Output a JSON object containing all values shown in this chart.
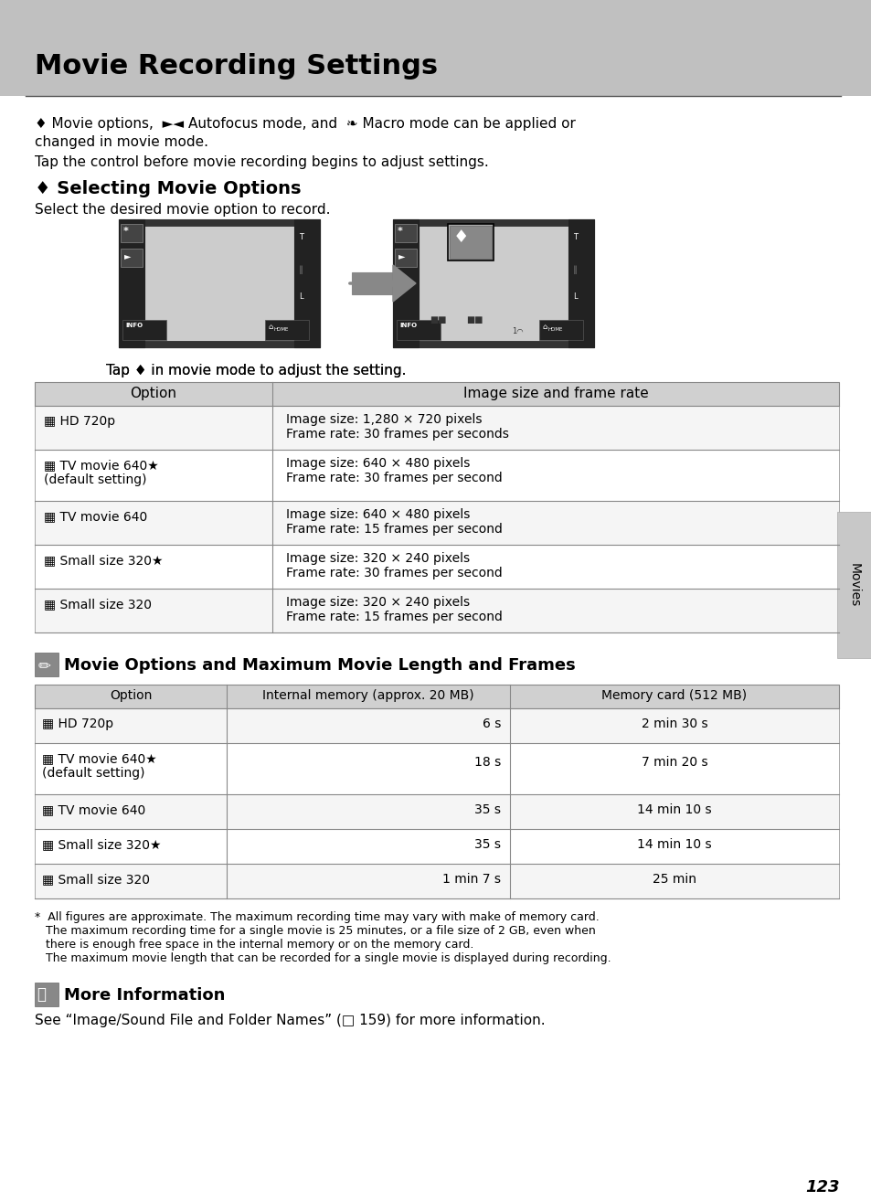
{
  "page_bg": "#ffffff",
  "header_bg": "#c0c0c0",
  "header_text": "Movie Recording Settings",
  "header_text_color": "#000000",
  "body_text_color": "#000000",
  "table1_header_bg": "#d0d0d0",
  "table2_header_bg": "#d0d0d0",
  "table_row_alt": "#f0f0f0",
  "table_border": "#888888",
  "intro_line1": "♦ Movie options, ►◄ Autofocus mode, and ❧ Macro mode can be applied or",
  "intro_line2": "changed in movie mode.",
  "intro_line3": "Tap the control before movie recording begins to adjust settings.",
  "section1_title": "♦ Selecting Movie Options",
  "section1_subtitle": "Select the desired movie option to record.",
  "caption": "Tap ♦ in movie mode to adjust the setting.",
  "table1_col1_header": "Option",
  "table1_col2_header": "Image size and frame rate",
  "table1_rows": [
    {
      "option": "▦ HD 720p",
      "detail_line1": "Image size: 1,280 × 720 pixels",
      "detail_line2": "Frame rate: 30 frames per seconds"
    },
    {
      "option": "▦ TV movie 640★\n(default setting)",
      "detail_line1": "Image size: 640 × 480 pixels",
      "detail_line2": "Frame rate: 30 frames per second"
    },
    {
      "option": "▦ TV movie 640",
      "detail_line1": "Image size: 640 × 480 pixels",
      "detail_line2": "Frame rate: 15 frames per second"
    },
    {
      "option": "▦ Small size 320★",
      "detail_line1": "Image size: 320 × 240 pixels",
      "detail_line2": "Frame rate: 30 frames per second"
    },
    {
      "option": "▦ Small size 320",
      "detail_line1": "Image size: 320 × 240 pixels",
      "detail_line2": "Frame rate: 15 frames per second"
    }
  ],
  "section2_title": "Movie Options and Maximum Movie Length and Frames",
  "table2_col1_header": "Option",
  "table2_col2_header": "Internal memory (approx. 20 MB)",
  "table2_col3_header": "Memory card (512 MB)",
  "table2_rows": [
    {
      "option": "▦ HD 720p",
      "internal": "6 s",
      "memory": "2 min 30 s"
    },
    {
      "option": "▦ TV movie 640★\n(default setting)",
      "internal": "18 s",
      "memory": "7 min 20 s"
    },
    {
      "option": "▦ TV movie 640",
      "internal": "35 s",
      "memory": "14 min 10 s"
    },
    {
      "option": "▦ Small size 320★",
      "internal": "35 s",
      "memory": "14 min 10 s"
    },
    {
      "option": "▦ Small size 320",
      "internal": "1 min 7 s",
      "memory": "25 min"
    }
  ],
  "footnote_lines": [
    "*  All figures are approximate. The maximum recording time may vary with make of memory card.",
    "   The maximum recording time for a single movie is 25 minutes, or a file size of 2 GB, even when",
    "   there is enough free space in the internal memory or on the memory card.",
    "   The maximum movie length that can be recorded for a single movie is displayed during recording."
  ],
  "section3_title": "More Information",
  "section3_text": "See “Image/Sound File and Folder Names” (□ 159) for more information.",
  "page_number": "123",
  "sidebar_text": "Movies",
  "sidebar_bg": "#c8c8c8"
}
